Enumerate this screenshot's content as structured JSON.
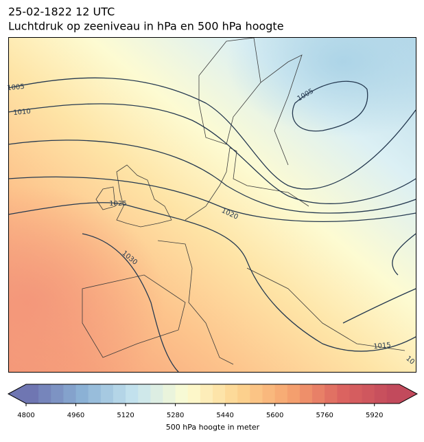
{
  "header": {
    "title": "25-02-1822 12 UTC",
    "subtitle": "Luchtdruk op zeeniveau in hPa en 500 hPa hoogte"
  },
  "map": {
    "contour_labels": [
      1005,
      1010,
      1025,
      1020,
      1030,
      1005,
      1015,
      "10"
    ]
  },
  "colorbar": {
    "label": "500 hPa hoogte in meter",
    "lim": [
      4800,
      6000
    ],
    "ticks": [
      4800,
      4960,
      5120,
      5280,
      5440,
      5600,
      5760,
      5920
    ],
    "colors": [
      "#6f76b2",
      "#8cb3d6",
      "#c6e4ef",
      "#fdfcd2",
      "#fdd590",
      "#f6a36f",
      "#dc6460",
      "#c24a5c"
    ]
  }
}
